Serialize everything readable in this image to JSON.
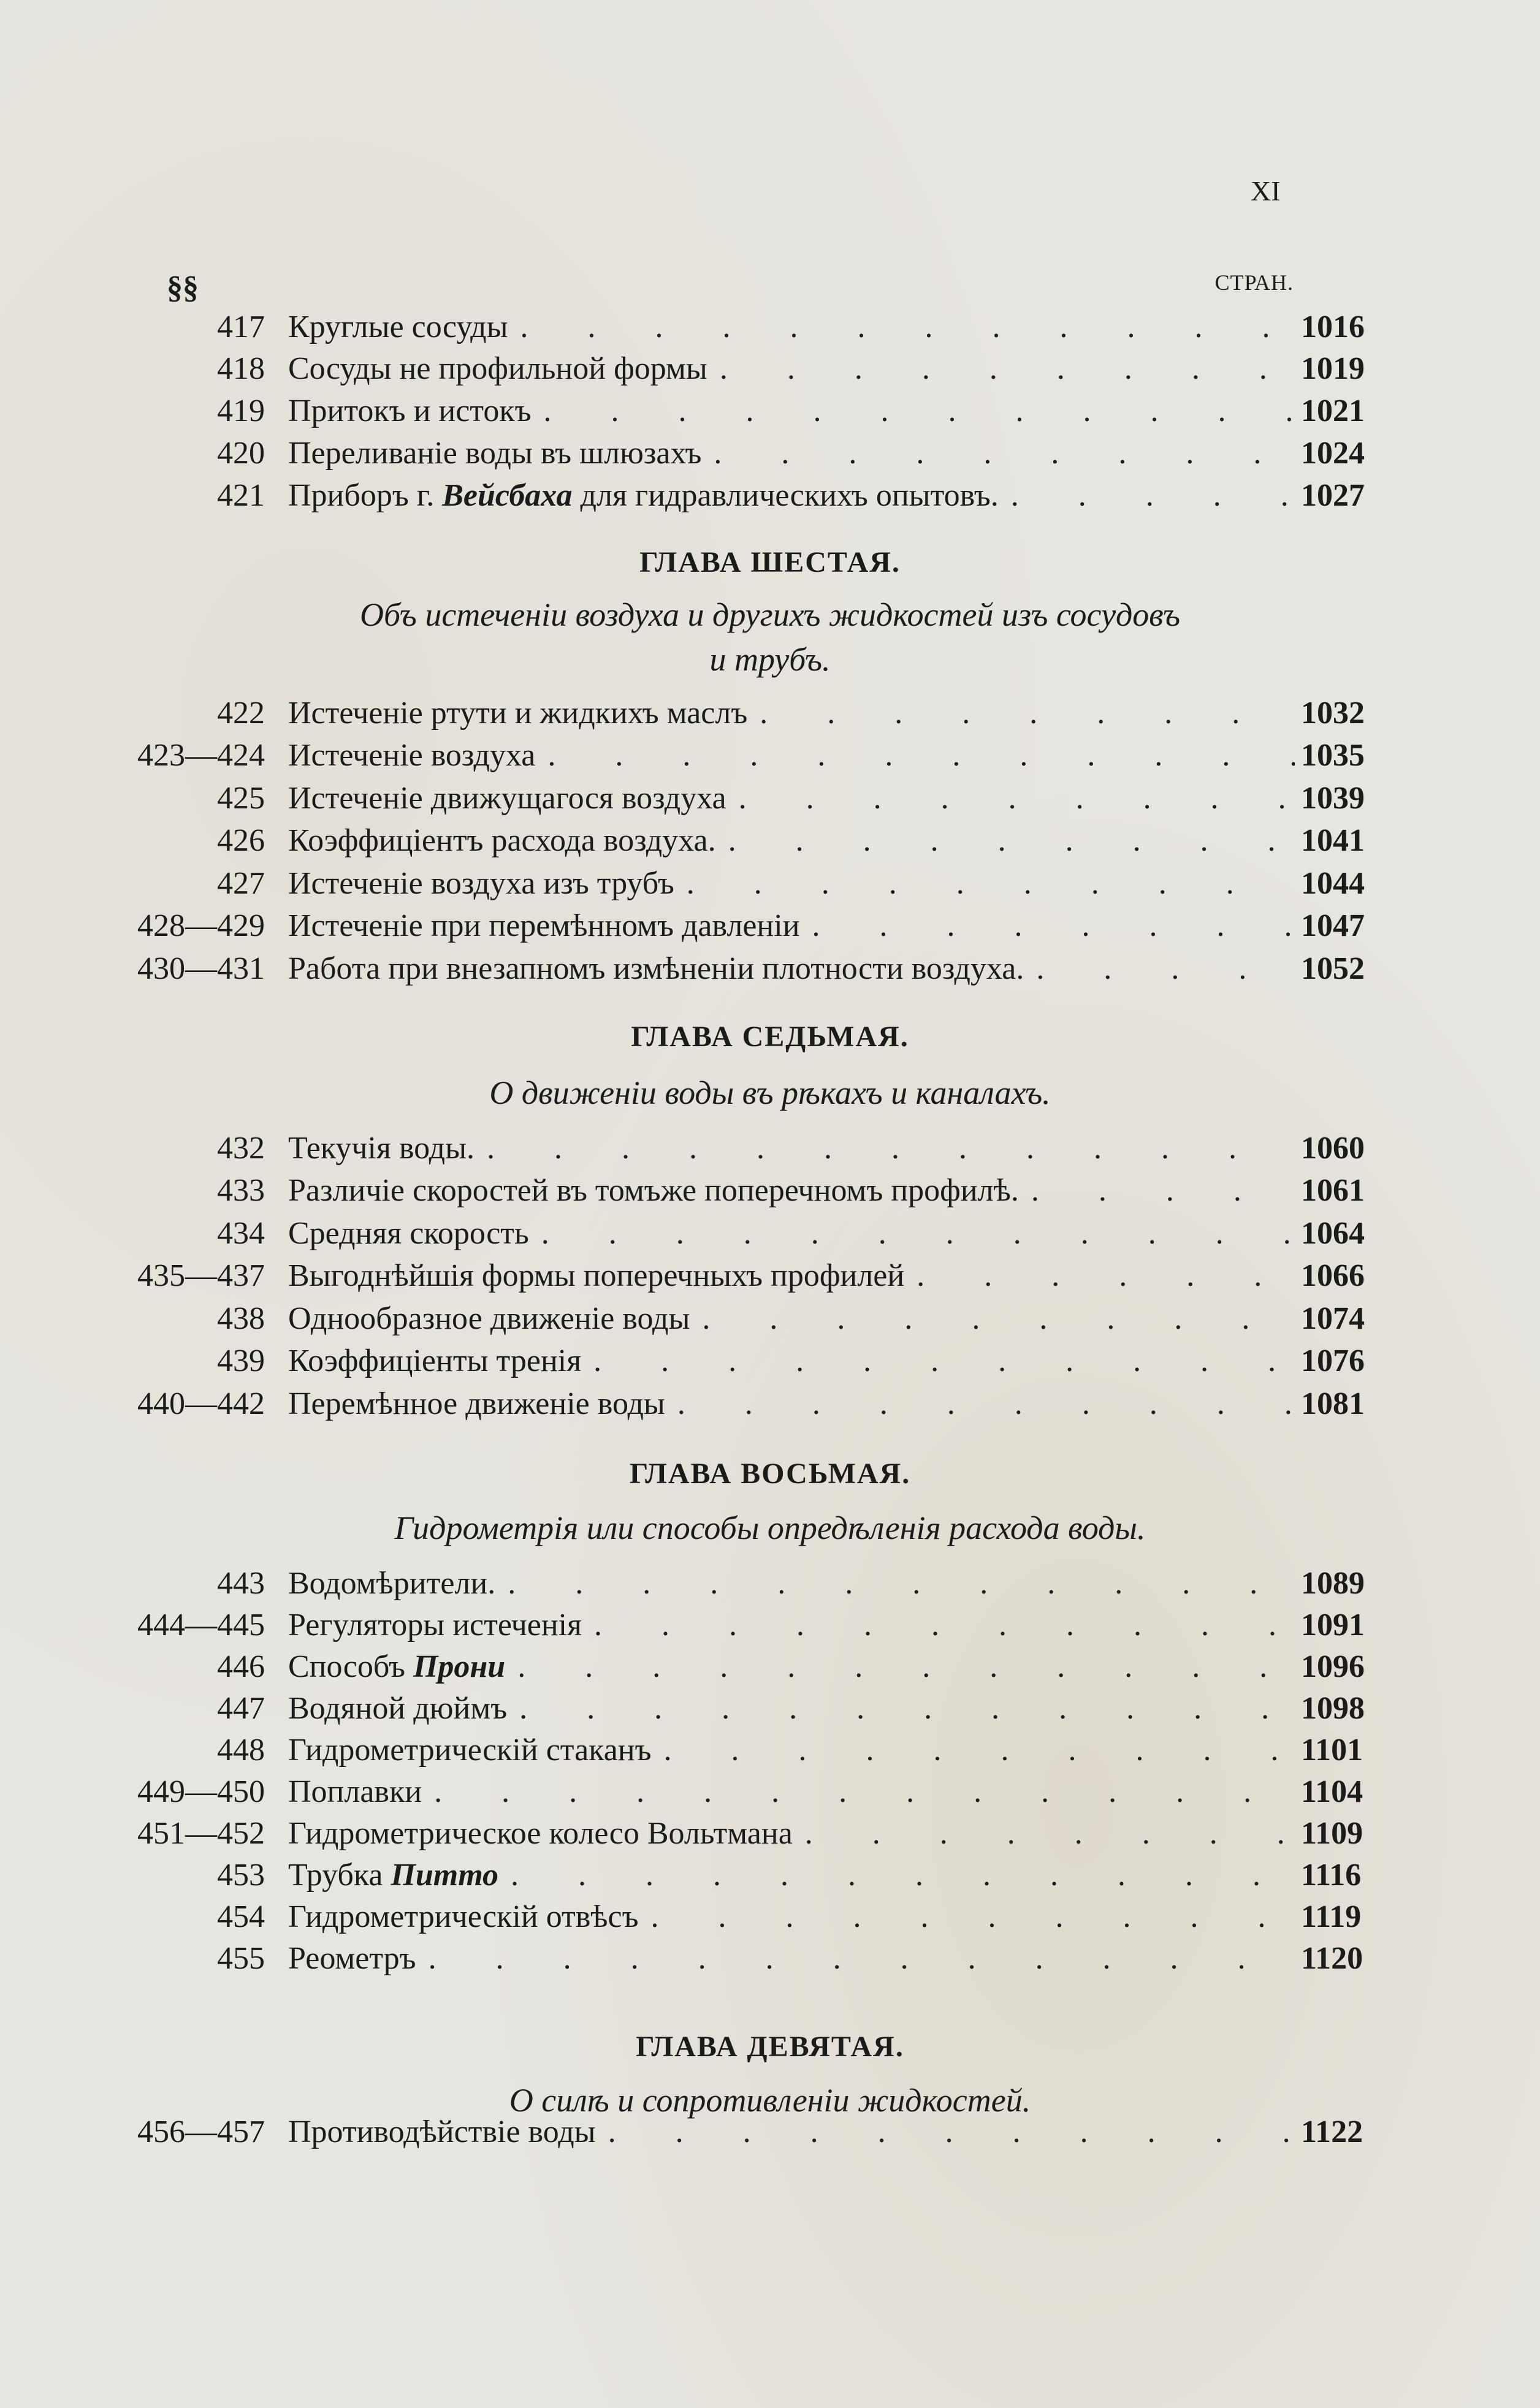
{
  "page_number": "XI",
  "header": {
    "sections_label": "§§",
    "pages_label": "СТРАН."
  },
  "blocks": [
    {
      "chapter": "",
      "subtitle": [],
      "entries": [
        {
          "num": "417",
          "parts": [
            {
              "text": "Круглые сосуды"
            }
          ],
          "page": "1016"
        },
        {
          "num": "418",
          "parts": [
            {
              "text": "Сосуды не профильной формы"
            }
          ],
          "page": "1019"
        },
        {
          "num": "419",
          "parts": [
            {
              "text": "Притокъ и истокъ"
            }
          ],
          "page": "1021"
        },
        {
          "num": "420",
          "parts": [
            {
              "text": "Переливаніе воды въ шлюзахъ"
            }
          ],
          "page": "1024"
        },
        {
          "num": "421",
          "parts": [
            {
              "text": "Приборъ г. "
            },
            {
              "text": "Вейсбаха",
              "italic": true
            },
            {
              "text": " для гидравлическихъ опытовъ."
            }
          ],
          "page": "1027"
        }
      ]
    },
    {
      "chapter": "ГЛАВА ШЕСТАЯ.",
      "subtitle": [
        "Объ истеченіи воздуха и другихъ жидкостей изъ сосудовъ",
        "и трубъ."
      ],
      "entries": [
        {
          "num": "422",
          "parts": [
            {
              "text": "Истеченіе ртути и жидкихъ маслъ"
            }
          ],
          "page": "1032"
        },
        {
          "num": "423—424",
          "parts": [
            {
              "text": "Истеченіе воздуха"
            }
          ],
          "page": "1035"
        },
        {
          "num": "425",
          "parts": [
            {
              "text": "Истеченіе движущагося воздуха"
            }
          ],
          "page": "1039"
        },
        {
          "num": "426",
          "parts": [
            {
              "text": "Коэффиціентъ расхода воздуха."
            }
          ],
          "page": "1041"
        },
        {
          "num": "427",
          "parts": [
            {
              "text": "Истеченіе воздуха изъ трубъ"
            }
          ],
          "page": "1044"
        },
        {
          "num": "428—429",
          "parts": [
            {
              "text": "Истеченіе при перемѣнномъ давленіи"
            }
          ],
          "page": "1047"
        },
        {
          "num": "430—431",
          "parts": [
            {
              "text": "Работа при внезапномъ измѣненіи плотности воздуха."
            }
          ],
          "page": "1052"
        }
      ]
    },
    {
      "chapter": "ГЛАВА СЕДЬМАЯ.",
      "subtitle": [
        "О движеніи воды въ рѣкахъ и каналахъ."
      ],
      "entries": [
        {
          "num": "432",
          "parts": [
            {
              "text": "Текучія воды."
            }
          ],
          "page": "1060"
        },
        {
          "num": "433",
          "parts": [
            {
              "text": "Различіе скоростей въ томъже поперечномъ профилѣ."
            }
          ],
          "page": "1061"
        },
        {
          "num": "434",
          "parts": [
            {
              "text": "Средняя скорость"
            }
          ],
          "page": "1064"
        },
        {
          "num": "435—437",
          "parts": [
            {
              "text": "Выгоднѣйшія формы поперечныхъ профилей"
            }
          ],
          "page": "1066"
        },
        {
          "num": "438",
          "parts": [
            {
              "text": "Однообразное движеніе воды"
            }
          ],
          "page": "1074"
        },
        {
          "num": "439",
          "parts": [
            {
              "text": "Коэффиціенты тренія"
            }
          ],
          "page": "1076"
        },
        {
          "num": "440—442",
          "parts": [
            {
              "text": "Перемѣнное движеніе воды"
            }
          ],
          "page": "1081"
        }
      ]
    },
    {
      "chapter": "ГЛАВА ВОСЬМАЯ.",
      "subtitle": [
        "Гидрометрія или способы опредѣленія расхода воды."
      ],
      "entries": [
        {
          "num": "443",
          "parts": [
            {
              "text": "Водомѣрители."
            }
          ],
          "page": "1089"
        },
        {
          "num": "444—445",
          "parts": [
            {
              "text": "Регуляторы истеченія"
            }
          ],
          "page": "1091"
        },
        {
          "num": "446",
          "parts": [
            {
              "text": "Способъ "
            },
            {
              "text": "Прони",
              "italic": true
            }
          ],
          "page": "1096"
        },
        {
          "num": "447",
          "parts": [
            {
              "text": "Водяной дюймъ"
            }
          ],
          "page": "1098"
        },
        {
          "num": "448",
          "parts": [
            {
              "text": "Гидрометрическій стаканъ"
            }
          ],
          "page": "1101"
        },
        {
          "num": "449—450",
          "parts": [
            {
              "text": "Поплавки"
            }
          ],
          "page": "1104"
        },
        {
          "num": "451—452",
          "parts": [
            {
              "text": "Гидрометрическое колесо Вольтмана"
            }
          ],
          "page": "1109"
        },
        {
          "num": "453",
          "parts": [
            {
              "text": "Трубка "
            },
            {
              "text": "Питто",
              "italic": true
            }
          ],
          "page": "1116"
        },
        {
          "num": "454",
          "parts": [
            {
              "text": "Гидрометрическій отвѣсъ"
            }
          ],
          "page": "1119"
        },
        {
          "num": "455",
          "parts": [
            {
              "text": "Реометръ"
            }
          ],
          "page": "1120"
        }
      ]
    },
    {
      "chapter": "ГЛАВА ДЕВЯТАЯ.",
      "subtitle": [
        "О силѣ и сопротивленіи жидкостей."
      ],
      "entries": [
        {
          "num": "456—457",
          "parts": [
            {
              "text": "Противодѣйствіе воды"
            }
          ],
          "page": "1122"
        }
      ]
    }
  ]
}
